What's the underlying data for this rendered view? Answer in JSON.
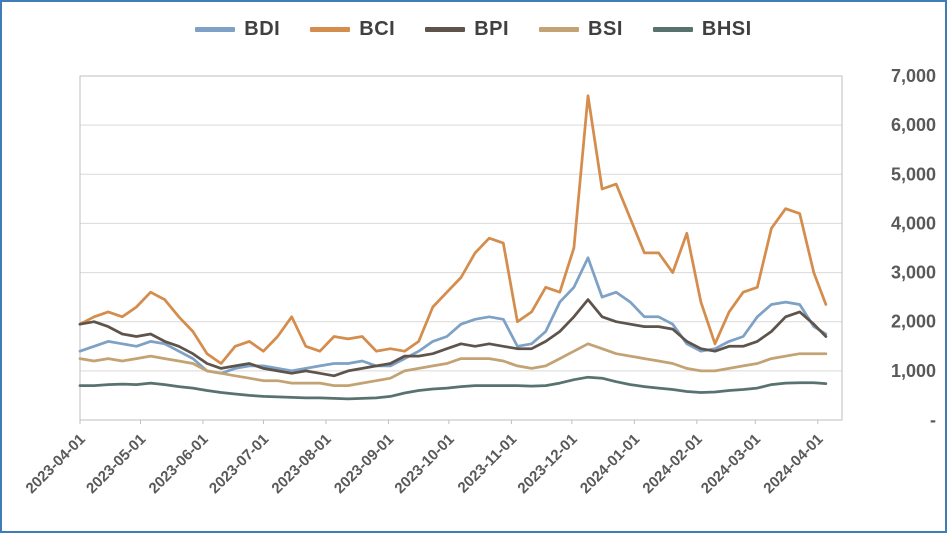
{
  "frame": {
    "border_color": "#3e7db6",
    "background": "#ffffff",
    "axis_text_color": "#595959",
    "gridline_color": "#d9d9d9"
  },
  "chart_data": {
    "type": "line",
    "title": "",
    "xlabel": "",
    "ylabel": "",
    "grid": true,
    "legend_position": "top",
    "ylim": [
      0,
      7000
    ],
    "yticks": [
      {
        "value": 7000,
        "label": "7,000"
      },
      {
        "value": 6000,
        "label": "6,000"
      },
      {
        "value": 5000,
        "label": "5,000"
      },
      {
        "value": 4000,
        "label": "4,000"
      },
      {
        "value": 3000,
        "label": "3,000"
      },
      {
        "value": 2000,
        "label": "2,000"
      },
      {
        "value": 1000,
        "label": "1,000"
      },
      {
        "value": 0,
        "label": "-"
      }
    ],
    "xticks": [
      "2023-04-01",
      "2023-05-01",
      "2023-06-01",
      "2023-07-01",
      "2023-08-01",
      "2023-09-01",
      "2023-10-01",
      "2023-11-01",
      "2023-12-01",
      "2024-01-01",
      "2024-02-01",
      "2024-03-01",
      "2024-04-01"
    ],
    "x_dates": [
      "2023-04-01",
      "2023-04-08",
      "2023-04-15",
      "2023-04-22",
      "2023-04-29",
      "2023-05-06",
      "2023-05-13",
      "2023-05-20",
      "2023-05-27",
      "2023-06-03",
      "2023-06-10",
      "2023-06-17",
      "2023-06-24",
      "2023-07-01",
      "2023-07-08",
      "2023-07-15",
      "2023-07-22",
      "2023-07-29",
      "2023-08-05",
      "2023-08-12",
      "2023-08-19",
      "2023-08-26",
      "2023-09-02",
      "2023-09-09",
      "2023-09-16",
      "2023-09-23",
      "2023-09-30",
      "2023-10-07",
      "2023-10-14",
      "2023-10-21",
      "2023-10-28",
      "2023-11-04",
      "2023-11-11",
      "2023-11-18",
      "2023-11-25",
      "2023-12-02",
      "2023-12-09",
      "2023-12-16",
      "2023-12-23",
      "2023-12-30",
      "2024-01-06",
      "2024-01-13",
      "2024-01-20",
      "2024-01-27",
      "2024-02-03",
      "2024-02-10",
      "2024-02-17",
      "2024-02-24",
      "2024-03-02",
      "2024-03-09",
      "2024-03-16",
      "2024-03-23",
      "2024-03-30",
      "2024-04-05"
    ],
    "series": [
      {
        "name": "BDI",
        "color": "#7ea1c6",
        "values": [
          1400,
          1500,
          1600,
          1550,
          1500,
          1600,
          1550,
          1400,
          1250,
          1000,
          950,
          1050,
          1100,
          1100,
          1050,
          1000,
          1050,
          1100,
          1150,
          1150,
          1200,
          1100,
          1100,
          1250,
          1400,
          1600,
          1700,
          1950,
          2050,
          2100,
          2050,
          1500,
          1550,
          1800,
          2400,
          2700,
          3300,
          2500,
          2600,
          2400,
          2100,
          2100,
          1950,
          1550,
          1400,
          1450,
          1600,
          1700,
          2100,
          2350,
          2400,
          2350,
          1900,
          1750
        ]
      },
      {
        "name": "BCI",
        "color": "#d48d4c",
        "values": [
          1950,
          2100,
          2200,
          2100,
          2300,
          2600,
          2450,
          2100,
          1800,
          1350,
          1150,
          1500,
          1600,
          1400,
          1700,
          2100,
          1500,
          1400,
          1700,
          1650,
          1700,
          1400,
          1450,
          1400,
          1600,
          2300,
          2600,
          2900,
          3400,
          3700,
          3600,
          2000,
          2200,
          2700,
          2600,
          3500,
          6600,
          4700,
          4800,
          4100,
          3400,
          3400,
          3000,
          3800,
          2400,
          1550,
          2200,
          2600,
          2700,
          3900,
          4300,
          4200,
          3000,
          2350
        ]
      },
      {
        "name": "BPI",
        "color": "#5f544b",
        "values": [
          1950,
          2000,
          1900,
          1750,
          1700,
          1750,
          1600,
          1500,
          1350,
          1150,
          1050,
          1100,
          1150,
          1050,
          1000,
          950,
          1000,
          950,
          900,
          1000,
          1050,
          1100,
          1150,
          1300,
          1300,
          1350,
          1450,
          1550,
          1500,
          1550,
          1500,
          1450,
          1450,
          1600,
          1800,
          2100,
          2450,
          2100,
          2000,
          1950,
          1900,
          1900,
          1850,
          1600,
          1450,
          1400,
          1500,
          1500,
          1600,
          1800,
          2100,
          2200,
          1950,
          1700
        ]
      },
      {
        "name": "BSI",
        "color": "#c3a273",
        "values": [
          1250,
          1200,
          1250,
          1200,
          1250,
          1300,
          1250,
          1200,
          1150,
          1000,
          950,
          900,
          850,
          800,
          800,
          750,
          750,
          750,
          700,
          700,
          750,
          800,
          850,
          1000,
          1050,
          1100,
          1150,
          1250,
          1250,
          1250,
          1200,
          1100,
          1050,
          1100,
          1250,
          1400,
          1550,
          1450,
          1350,
          1300,
          1250,
          1200,
          1150,
          1050,
          1000,
          1000,
          1050,
          1100,
          1150,
          1250,
          1300,
          1350,
          1350,
          1350
        ]
      },
      {
        "name": "BHSI",
        "color": "#587270",
        "values": [
          700,
          700,
          720,
          730,
          720,
          750,
          720,
          680,
          650,
          600,
          560,
          530,
          500,
          480,
          470,
          460,
          450,
          450,
          440,
          430,
          440,
          450,
          480,
          550,
          600,
          630,
          650,
          680,
          700,
          700,
          700,
          700,
          690,
          700,
          750,
          820,
          870,
          850,
          780,
          720,
          680,
          650,
          620,
          580,
          560,
          570,
          600,
          620,
          650,
          720,
          750,
          760,
          760,
          740
        ]
      }
    ]
  }
}
